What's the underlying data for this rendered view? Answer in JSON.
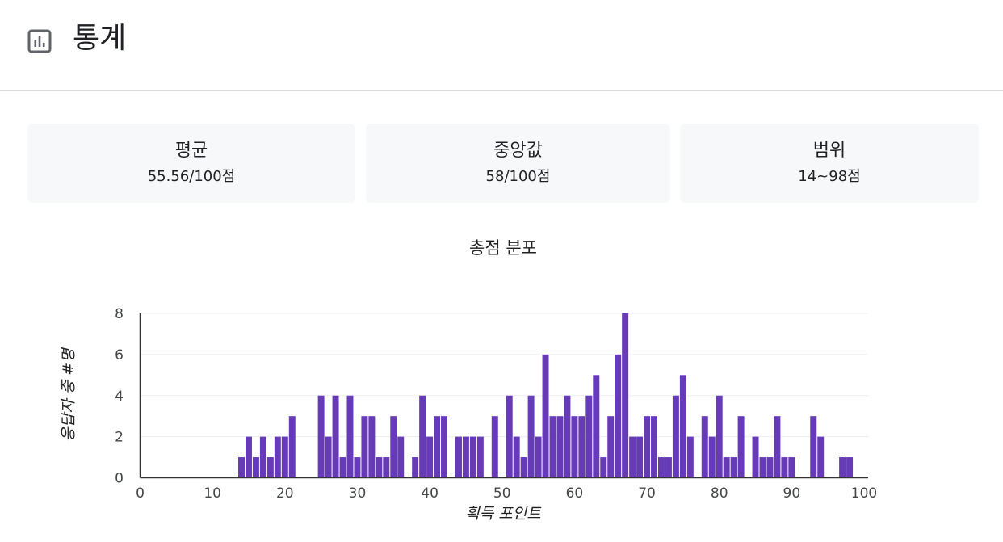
{
  "header": {
    "title": "통계",
    "icon": "bar-chart-icon"
  },
  "stats": [
    {
      "label": "평균",
      "value": "55.56/100점"
    },
    {
      "label": "중앙값",
      "value": "58/100점"
    },
    {
      "label": "범위",
      "value": "14~98점"
    }
  ],
  "chart_data": {
    "type": "bar",
    "title": "총점 분포",
    "xlabel": "획득 포인트",
    "ylabel": "응답자 중 #명",
    "xlim": [
      0,
      100
    ],
    "ylim": [
      0,
      8
    ],
    "xticks": [
      0,
      10,
      20,
      30,
      40,
      50,
      60,
      70,
      80,
      90,
      100
    ],
    "yticks": [
      0,
      2,
      4,
      6,
      8
    ],
    "grid": true,
    "bar_color": "#673ab7",
    "x": [
      14,
      15,
      16,
      17,
      18,
      19,
      20,
      21,
      25,
      26,
      27,
      28,
      29,
      30,
      31,
      32,
      33,
      34,
      35,
      36,
      38,
      39,
      40,
      41,
      42,
      44,
      45,
      46,
      47,
      49,
      51,
      52,
      53,
      54,
      55,
      56,
      57,
      58,
      59,
      60,
      61,
      62,
      63,
      64,
      65,
      66,
      67,
      68,
      69,
      70,
      71,
      72,
      73,
      74,
      75,
      76,
      78,
      79,
      80,
      81,
      82,
      83,
      85,
      86,
      87,
      88,
      89,
      90,
      93,
      94,
      97,
      98
    ],
    "values": [
      1,
      2,
      1,
      2,
      1,
      2,
      2,
      3,
      4,
      2,
      4,
      1,
      4,
      1,
      3,
      3,
      1,
      1,
      3,
      2,
      1,
      4,
      2,
      3,
      3,
      2,
      2,
      2,
      2,
      3,
      4,
      2,
      1,
      4,
      2,
      6,
      3,
      3,
      4,
      3,
      3,
      4,
      5,
      1,
      3,
      6,
      8,
      2,
      2,
      3,
      3,
      1,
      1,
      4,
      5,
      2,
      3,
      2,
      4,
      1,
      1,
      3,
      2,
      1,
      1,
      3,
      1,
      1,
      3,
      2,
      1,
      1
    ]
  }
}
